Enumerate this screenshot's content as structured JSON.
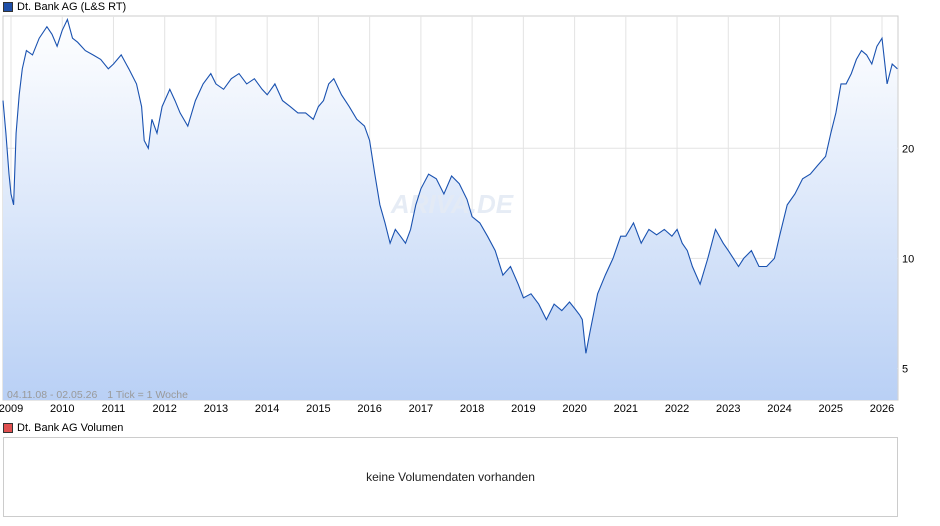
{
  "legend_price": {
    "label": "Dt. Bank AG (L&S RT)",
    "color": "#1f4fa8"
  },
  "legend_volume": {
    "label": "Dt. Bank AG Volumen",
    "color": "#e05050"
  },
  "range_note": "04.11.08 - 02.05.26",
  "tick_note": "1 Tick = 1 Woche",
  "watermark": "ARIVA.DE",
  "volume_message": "keine Volumendaten vorhanden",
  "chart_data": {
    "type": "area",
    "title": "",
    "xlabel": "",
    "ylabel": "",
    "y_scale": "log",
    "grid": true,
    "ylim": [
      4.1,
      46
    ],
    "x_ticks": [
      "2009",
      "2010",
      "2011",
      "2012",
      "2013",
      "2014",
      "2015",
      "2016",
      "2017",
      "2018",
      "2019",
      "2020",
      "2021",
      "2022",
      "2023",
      "2024",
      "2025",
      "2026"
    ],
    "y_ticks": [
      5,
      10,
      20
    ],
    "line_color": "#1a52b0",
    "series": [
      {
        "x": [
          2008.84,
          2008.9,
          2008.96,
          2009.0,
          2009.05,
          2009.1,
          2009.16,
          2009.22,
          2009.3,
          2009.42,
          2009.55,
          2009.7,
          2009.8,
          2009.9,
          2010.0,
          2010.1,
          2010.2,
          2010.3,
          2010.45,
          2010.6,
          2010.75,
          2010.9,
          2011.0,
          2011.15,
          2011.3,
          2011.45,
          2011.55,
          2011.6,
          2011.68,
          2011.75,
          2011.85,
          2011.95,
          2012.1,
          2012.2,
          2012.3,
          2012.45,
          2012.6,
          2012.75,
          2012.9,
          2013.0,
          2013.15,
          2013.3,
          2013.45,
          2013.6,
          2013.75,
          2013.9,
          2014.0,
          2014.15,
          2014.3,
          2014.45,
          2014.6,
          2014.75,
          2014.9,
          2015.0,
          2015.1,
          2015.2,
          2015.3,
          2015.45,
          2015.6,
          2015.75,
          2015.9,
          2016.0,
          2016.1,
          2016.2,
          2016.3,
          2016.4,
          2016.5,
          2016.6,
          2016.7,
          2016.8,
          2016.9,
          2017.0,
          2017.15,
          2017.3,
          2017.45,
          2017.6,
          2017.75,
          2017.9,
          2018.0,
          2018.15,
          2018.3,
          2018.45,
          2018.6,
          2018.75,
          2018.9,
          2019.0,
          2019.15,
          2019.3,
          2019.45,
          2019.6,
          2019.75,
          2019.9,
          2020.0,
          2020.1,
          2020.15,
          2020.22,
          2020.3,
          2020.45,
          2020.6,
          2020.75,
          2020.9,
          2021.0,
          2021.15,
          2021.3,
          2021.45,
          2021.6,
          2021.75,
          2021.9,
          2022.0,
          2022.1,
          2022.2,
          2022.3,
          2022.45,
          2022.6,
          2022.75,
          2022.9,
          2023.0,
          2023.1,
          2023.2,
          2023.3,
          2023.45,
          2023.6,
          2023.75,
          2023.9,
          2024.0,
          2024.15,
          2024.3,
          2024.45,
          2024.6,
          2024.75,
          2024.9,
          2025.0,
          2025.1,
          2025.2,
          2025.3,
          2025.4,
          2025.5,
          2025.6,
          2025.7,
          2025.8,
          2025.9,
          2026.0,
          2026.1,
          2026.2,
          2026.3
        ],
        "y": [
          27,
          22,
          17,
          15,
          14,
          22,
          28,
          33,
          37,
          36,
          40,
          43,
          41,
          38,
          42,
          45,
          40,
          39,
          37,
          36,
          35,
          33,
          34,
          36,
          33,
          30,
          26,
          21,
          20,
          24,
          22,
          26,
          29,
          27,
          25,
          23,
          27,
          30,
          32,
          30,
          29,
          31,
          32,
          30,
          31,
          29,
          28,
          30,
          27,
          26,
          25,
          25,
          24,
          26,
          27,
          30,
          31,
          28,
          26,
          24,
          23,
          21,
          17,
          14,
          12.5,
          11,
          12,
          11.5,
          11,
          12,
          14,
          15.5,
          17,
          16.5,
          15,
          16.8,
          16,
          14.5,
          13,
          12.5,
          11.5,
          10.5,
          9,
          9.5,
          8.5,
          7.8,
          8,
          7.5,
          6.8,
          7.5,
          7.2,
          7.6,
          7.3,
          7.0,
          6.8,
          5.5,
          6.3,
          8,
          9,
          10,
          11.5,
          11.5,
          12.5,
          11,
          12,
          11.6,
          12,
          11.5,
          12,
          11,
          10.5,
          9.5,
          8.5,
          10,
          12,
          11,
          10.5,
          10,
          9.5,
          10,
          10.5,
          9.5,
          9.5,
          10,
          11.5,
          14,
          15,
          16.5,
          17,
          18,
          19,
          22,
          25,
          30,
          30,
          32,
          35,
          37,
          36,
          34,
          38,
          40,
          30,
          34,
          33
        ]
      }
    ]
  }
}
